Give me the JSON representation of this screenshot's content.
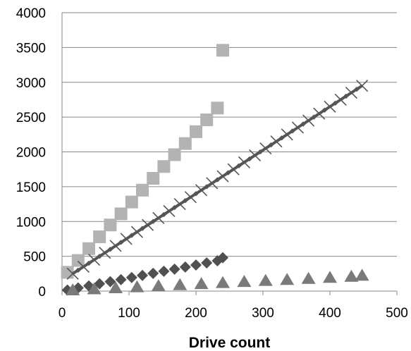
{
  "chart_data": {
    "type": "scatter",
    "title": "",
    "xlabel": "Drive count",
    "ylabel": "",
    "xlim": [
      0,
      500
    ],
    "ylim": [
      0,
      4000
    ],
    "x_ticks": [
      "0",
      "100",
      "200",
      "300",
      "400",
      "500"
    ],
    "y_ticks": [
      "0",
      "500",
      "1000",
      "1500",
      "2000",
      "2500",
      "3000",
      "3500",
      "4000"
    ],
    "grid": "horizontal",
    "legend": "none",
    "series": [
      {
        "marker": "square",
        "color": "#b3b3b3",
        "x": [
          8,
          24,
          40,
          56,
          72,
          88,
          104,
          120,
          136,
          152,
          168,
          184,
          200,
          216,
          232,
          240
        ],
        "y": [
          270,
          440,
          610,
          780,
          950,
          1110,
          1280,
          1450,
          1620,
          1790,
          1960,
          2120,
          2290,
          2460,
          2630,
          3460
        ]
      },
      {
        "marker": "x",
        "color": "#555555",
        "line": true,
        "x": [
          16,
          32,
          48,
          64,
          80,
          96,
          112,
          128,
          144,
          160,
          176,
          192,
          208,
          224,
          240,
          256,
          272,
          288,
          304,
          320,
          336,
          352,
          368,
          384,
          400,
          416,
          432,
          448
        ],
        "y": [
          250,
          350,
          450,
          550,
          650,
          750,
          850,
          950,
          1050,
          1150,
          1250,
          1350,
          1450,
          1550,
          1650,
          1750,
          1850,
          1950,
          2050,
          2150,
          2250,
          2350,
          2450,
          2550,
          2650,
          2750,
          2850,
          2950
        ]
      },
      {
        "marker": "diamond",
        "color": "#505050",
        "x": [
          8,
          24,
          40,
          56,
          72,
          88,
          104,
          120,
          136,
          152,
          168,
          184,
          200,
          216,
          232,
          240
        ],
        "y": [
          15,
          45,
          75,
          105,
          135,
          165,
          195,
          225,
          255,
          285,
          315,
          345,
          375,
          405,
          435,
          480
        ]
      },
      {
        "marker": "triangle",
        "color": "#7a7a7a",
        "x": [
          16,
          48,
          80,
          112,
          144,
          176,
          208,
          240,
          272,
          304,
          336,
          368,
          400,
          432,
          448
        ],
        "y": [
          10,
          25,
          40,
          55,
          70,
          85,
          100,
          115,
          130,
          145,
          160,
          175,
          190,
          205,
          220
        ]
      }
    ]
  }
}
